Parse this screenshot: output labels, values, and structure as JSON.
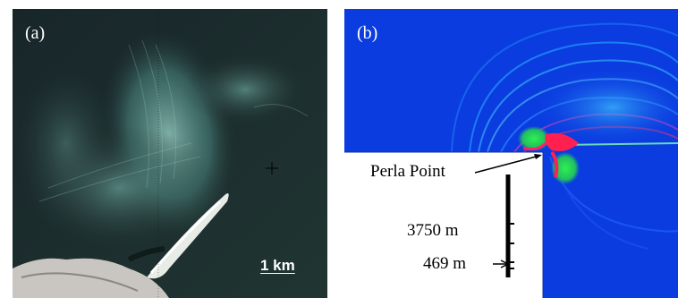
{
  "panel_a": {
    "label": "(a)",
    "scale_bar": "1 km"
  },
  "panel_b": {
    "label": "(b)",
    "annotation": "Perla Point",
    "scale_large": "3750 m",
    "scale_small": "469 m"
  },
  "colors": {
    "sea_dark": "#1e302f",
    "sediment_plume": "#7fb6ad",
    "land": "#c9c6c1",
    "model_background": "#0b3ce0",
    "model_high": "#ff2060",
    "model_mid": "#20e040"
  }
}
